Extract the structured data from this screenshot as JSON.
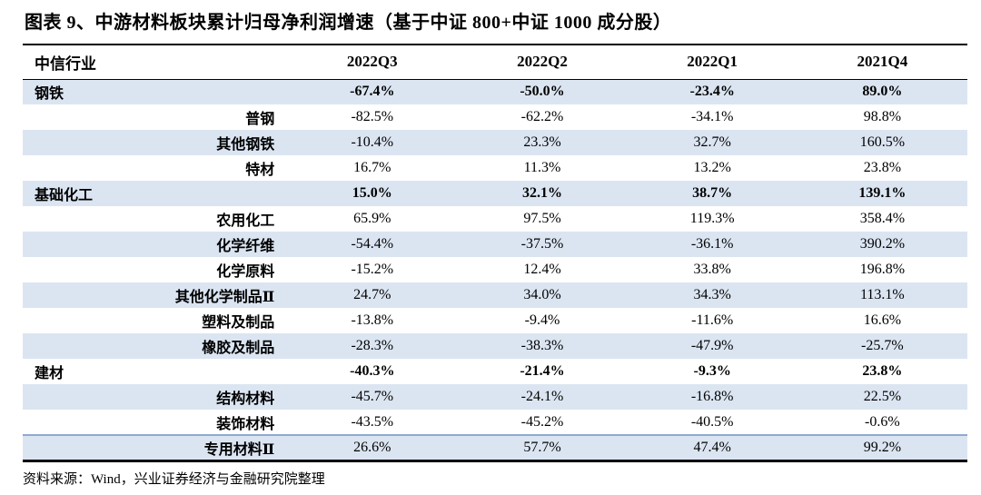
{
  "title": "图表 9、中游材料板块累计归母净利润增速（基于中证 800+中证 1000 成分股）",
  "chart_data": {
    "type": "table",
    "figure_label": "图表 9",
    "title": "中游材料板块累计归母净利润增速（基于中证 800+中证 1000 成分股）",
    "columns": [
      "中信行业",
      "2022Q3",
      "2022Q2",
      "2022Q1",
      "2021Q4"
    ],
    "rows": [
      {
        "industry": "钢铁",
        "level": "category",
        "values": [
          "-67.4%",
          "-50.0%",
          "-23.4%",
          "89.0%"
        ]
      },
      {
        "industry": "普钢",
        "level": "sub",
        "values": [
          "-82.5%",
          "-62.2%",
          "-34.1%",
          "98.8%"
        ]
      },
      {
        "industry": "其他钢铁",
        "level": "sub",
        "values": [
          "-10.4%",
          "23.3%",
          "32.7%",
          "160.5%"
        ]
      },
      {
        "industry": "特材",
        "level": "sub",
        "values": [
          "16.7%",
          "11.3%",
          "13.2%",
          "23.8%"
        ]
      },
      {
        "industry": "基础化工",
        "level": "category",
        "values": [
          "15.0%",
          "32.1%",
          "38.7%",
          "139.1%"
        ]
      },
      {
        "industry": "农用化工",
        "level": "sub",
        "values": [
          "65.9%",
          "97.5%",
          "119.3%",
          "358.4%"
        ]
      },
      {
        "industry": "化学纤维",
        "level": "sub",
        "values": [
          "-54.4%",
          "-37.5%",
          "-36.1%",
          "390.2%"
        ]
      },
      {
        "industry": "化学原料",
        "level": "sub",
        "values": [
          "-15.2%",
          "12.4%",
          "33.8%",
          "196.8%"
        ]
      },
      {
        "industry": "其他化学制品Ⅱ",
        "level": "sub",
        "values": [
          "24.7%",
          "34.0%",
          "34.3%",
          "113.1%"
        ]
      },
      {
        "industry": "塑料及制品",
        "level": "sub",
        "values": [
          "-13.8%",
          "-9.4%",
          "-11.6%",
          "16.6%"
        ]
      },
      {
        "industry": "橡胶及制品",
        "level": "sub",
        "values": [
          "-28.3%",
          "-38.3%",
          "-47.9%",
          "-25.7%"
        ]
      },
      {
        "industry": "建材",
        "level": "category",
        "values": [
          "-40.3%",
          "-21.4%",
          "-9.3%",
          "23.8%"
        ]
      },
      {
        "industry": "结构材料",
        "level": "sub",
        "values": [
          "-45.7%",
          "-24.1%",
          "-16.8%",
          "22.5%"
        ]
      },
      {
        "industry": "装饰材料",
        "level": "sub",
        "values": [
          "-43.5%",
          "-45.2%",
          "-40.5%",
          "-0.6%"
        ]
      },
      {
        "industry": "专用材料Ⅱ",
        "level": "sub",
        "values": [
          "26.6%",
          "57.7%",
          "47.4%",
          "99.2%"
        ],
        "top_rule": true
      }
    ]
  },
  "footer": {
    "source_label": "资料来源：Wind，兴业证券经济与金融研究院整理"
  },
  "colors": {
    "row_stripe": "#dbe5f2",
    "divider_blue": "#8fa9cf",
    "border_black": "#000000",
    "text": "#000000"
  }
}
